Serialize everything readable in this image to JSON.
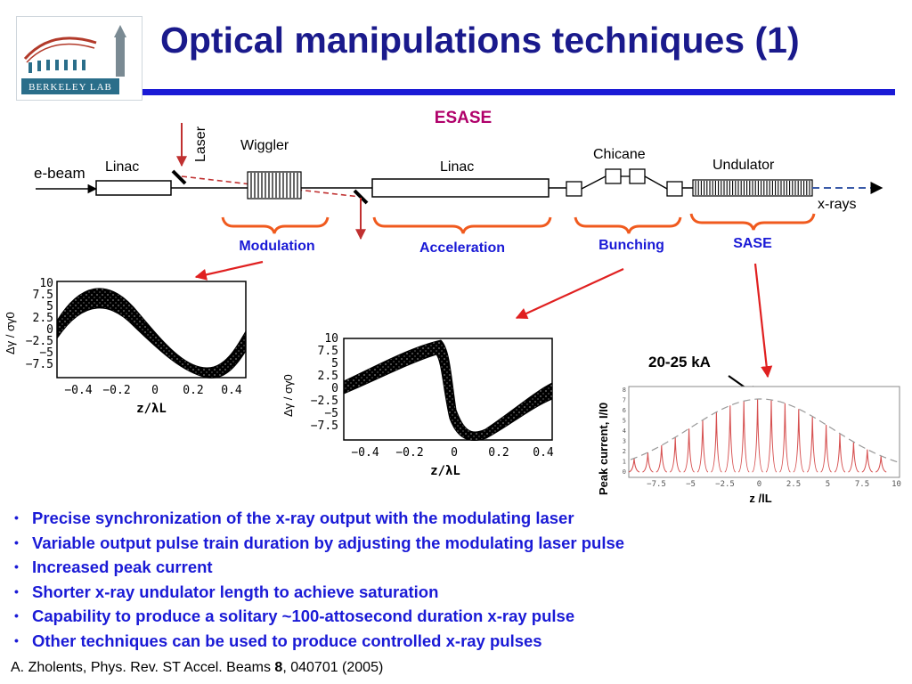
{
  "header": {
    "title": "Optical manipulations techniques (1)",
    "logo_text": "BERKELEY LAB"
  },
  "diagram": {
    "scheme_title": "ESASE",
    "ebeam": "e-beam",
    "laser": "Laser",
    "linac1": "Linac",
    "wiggler": "Wiggler",
    "linac2": "Linac",
    "chicane": "Chicane",
    "undulator": "Undulator",
    "xrays": "x-rays",
    "stages": {
      "modulation": "Modulation",
      "acceleration": "Acceleration",
      "bunching": "Bunching",
      "sase": "SASE"
    }
  },
  "plot1": {
    "ylabel": "Δγ / σγ0",
    "xlabel": "z/λL",
    "yticks": [
      "10",
      "7.5",
      "5",
      "2.5",
      "0",
      "−2.5",
      "−5",
      "−7.5"
    ],
    "xticks": [
      "−0.4",
      "−0.2",
      "0",
      "0.2",
      "0.4"
    ]
  },
  "plot2": {
    "ylabel": "Δγ / σγ0",
    "xlabel": "z/λL",
    "yticks": [
      "10",
      "7.5",
      "5",
      "2.5",
      "0",
      "−2.5",
      "−5",
      "−7.5"
    ],
    "xticks": [
      "−0.4",
      "−0.2",
      "0",
      "0.2",
      "0.4"
    ]
  },
  "plot3": {
    "annotation": "20-25 kA",
    "ylabel": "Peak current, I/I0",
    "xlabel": "z /lL",
    "yticks": [
      "8",
      "7",
      "6",
      "5",
      "4",
      "3",
      "2",
      "1",
      "0"
    ],
    "xticks": [
      "−7.5",
      "−5",
      "−2.5",
      "0",
      "2.5",
      "5",
      "7.5",
      "10"
    ]
  },
  "bullets": [
    "Precise synchronization of the x-ray output with the modulating laser",
    "Variable output pulse train duration by adjusting the modulating laser pulse",
    "Increased peak current",
    "Shorter x-ray undulator length to achieve saturation",
    "Capability to produce a solitary ~100-attosecond duration x-ray pulse",
    "Other techniques can be used to produce controlled x-ray pulses"
  ],
  "citation": {
    "prefix": "A. Zholents, Phys. Rev. ST Accel. Beams ",
    "volume": "8",
    "suffix": ", 040701 (2005)"
  },
  "colors": {
    "title": "#1a1a8c",
    "rule": "#1a1ad6",
    "bullets": "#1a1ad6",
    "scheme_title": "#b0006a",
    "stage_labels": "#1a1ad6",
    "braces": "#f05a1e",
    "red_arrows": "#e02020",
    "current_peaks": "#d65050"
  }
}
